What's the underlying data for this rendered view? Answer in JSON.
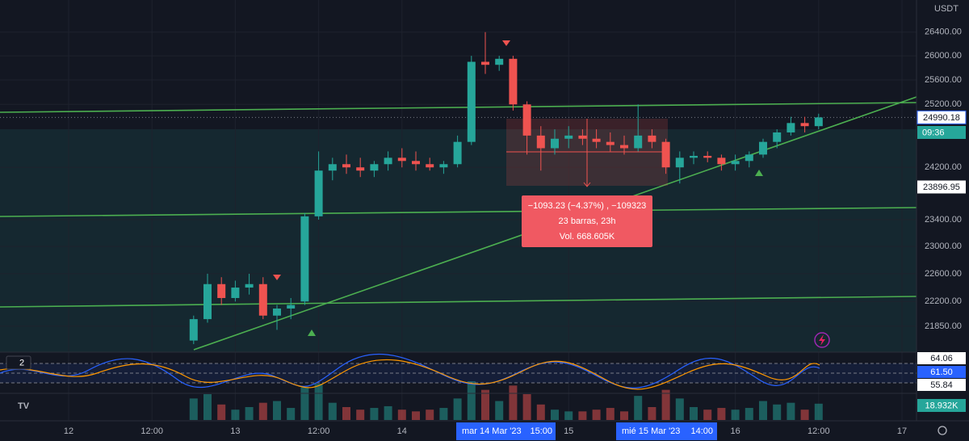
{
  "chart_data": {
    "type": "candlestick",
    "categories": [
      null,
      null,
      null,
      null,
      null,
      "12",
      null,
      null,
      null,
      null,
      null,
      "12:00",
      null,
      null,
      null,
      null,
      null,
      "13",
      null,
      null,
      null,
      null,
      null,
      "12:00",
      null,
      null,
      null,
      null,
      null,
      "14",
      null,
      null,
      null,
      null,
      null,
      null,
      null,
      null,
      null,
      null,
      null,
      "15",
      null,
      null,
      null,
      null,
      null,
      null,
      null,
      null,
      null,
      null,
      null,
      "16",
      null,
      null,
      null,
      null,
      null,
      "12:00",
      null,
      null,
      null,
      null,
      null,
      "17"
    ],
    "open": [
      null,
      null,
      null,
      null,
      null,
      null,
      null,
      null,
      null,
      null,
      null,
      null,
      null,
      null,
      21650,
      21950,
      22450,
      22250,
      22400,
      22450,
      22000,
      22100,
      22200,
      23450,
      24150,
      24250,
      24200,
      24150,
      24250,
      24350,
      24300,
      24250,
      24200,
      24250,
      24600,
      25900,
      25850,
      25950,
      25200,
      24700,
      24500,
      24650,
      24700,
      24650,
      24600,
      24550,
      24500,
      24700,
      24600,
      24200,
      24350,
      24380,
      24350,
      24250,
      24300,
      24400,
      24600,
      24750,
      24900,
      24850,
      null,
      null,
      null,
      null,
      null,
      null
    ],
    "high": [
      null,
      null,
      null,
      null,
      null,
      null,
      null,
      null,
      null,
      null,
      null,
      null,
      null,
      null,
      22000,
      22600,
      22550,
      22500,
      22600,
      22550,
      22150,
      22250,
      23500,
      24450,
      24350,
      24400,
      24350,
      24300,
      24450,
      24500,
      24450,
      24350,
      24300,
      24700,
      26000,
      26400,
      26000,
      26000,
      25250,
      24850,
      24800,
      24850,
      24800,
      24800,
      24750,
      24700,
      25200,
      24800,
      24650,
      24450,
      24450,
      24450,
      24400,
      24400,
      24450,
      24650,
      24800,
      25000,
      25000,
      25050,
      null,
      null,
      null,
      null,
      null,
      null
    ],
    "low": [
      null,
      null,
      null,
      null,
      null,
      null,
      null,
      null,
      null,
      null,
      null,
      null,
      null,
      null,
      21600,
      21900,
      22150,
      22200,
      22300,
      21950,
      21800,
      21950,
      22150,
      23400,
      24000,
      24100,
      24050,
      24050,
      24150,
      24200,
      24150,
      24150,
      24100,
      24200,
      24550,
      25700,
      25750,
      25100,
      24400,
      24150,
      24400,
      24500,
      24550,
      24500,
      24450,
      24400,
      24450,
      24500,
      24100,
      23950,
      24250,
      24280,
      24150,
      24150,
      24200,
      24350,
      24500,
      24700,
      24750,
      24800,
      null,
      null,
      null,
      null,
      null,
      null
    ],
    "close": [
      null,
      null,
      null,
      null,
      null,
      null,
      null,
      null,
      null,
      null,
      null,
      null,
      null,
      null,
      21950,
      22450,
      22250,
      22400,
      22450,
      22000,
      22100,
      22150,
      23450,
      24150,
      24250,
      24200,
      24150,
      24250,
      24350,
      24300,
      24250,
      24200,
      24250,
      24600,
      25900,
      25850,
      25950,
      25200,
      24700,
      24500,
      24650,
      24700,
      24650,
      24600,
      24550,
      24500,
      24700,
      24600,
      24200,
      24350,
      24380,
      24350,
      24250,
      24300,
      24400,
      24600,
      24750,
      24900,
      24850,
      24990.18,
      null,
      null,
      null,
      null,
      null,
      null
    ],
    "volume": [
      null,
      null,
      null,
      null,
      null,
      null,
      null,
      null,
      null,
      null,
      null,
      null,
      null,
      null,
      25,
      30,
      18,
      12,
      15,
      20,
      22,
      14,
      38,
      42,
      20,
      15,
      12,
      14,
      16,
      12,
      10,
      12,
      14,
      25,
      45,
      35,
      22,
      40,
      30,
      18,
      12,
      10,
      10,
      12,
      14,
      10,
      28,
      15,
      35,
      25,
      15,
      12,
      14,
      12,
      14,
      22,
      18,
      20,
      12,
      18.932,
      null,
      null,
      null,
      null,
      null,
      null
    ],
    "up_color": "#26a69a",
    "down_color": "#ef5350",
    "log_scale": true,
    "grid": true,
    "ylim": [
      21500,
      26950
    ],
    "yticks": [
      {
        "value": 26400,
        "label": "26400.00"
      },
      {
        "value": 26000,
        "label": "26000.00"
      },
      {
        "value": 25600,
        "label": "25600.00"
      },
      {
        "value": 25200,
        "label": "25200.00"
      },
      {
        "value": 24200,
        "label": "24200.00"
      },
      {
        "value": 23400,
        "label": "23400.00"
      },
      {
        "value": 23000,
        "label": "23000.00"
      },
      {
        "value": 22600,
        "label": "22600.00"
      },
      {
        "value": 22200,
        "label": "22200.00"
      },
      {
        "value": 21850,
        "label": "21850.00"
      }
    ],
    "last_price": {
      "value": 24990.18,
      "label": "24990.18"
    },
    "marked_price": {
      "value": 23896.95,
      "label": "23896.95"
    }
  },
  "ui": {
    "currency": "USDT",
    "countdown": "09:36",
    "indicator_count": "2",
    "indicator_labels": [
      "64.06",
      "61.50",
      "55.84"
    ],
    "volume_label": "18.932K",
    "measure": [
      "−1093.23 (−4.37%) , −109323",
      "23 barras, 23h",
      "Vol. 668.605K"
    ],
    "cursor_dates": [
      {
        "date": "mar 14 Mar '23",
        "time": "15:00"
      },
      {
        "date": "mié 15 Mar '23",
        "time": "14:00"
      }
    ]
  }
}
